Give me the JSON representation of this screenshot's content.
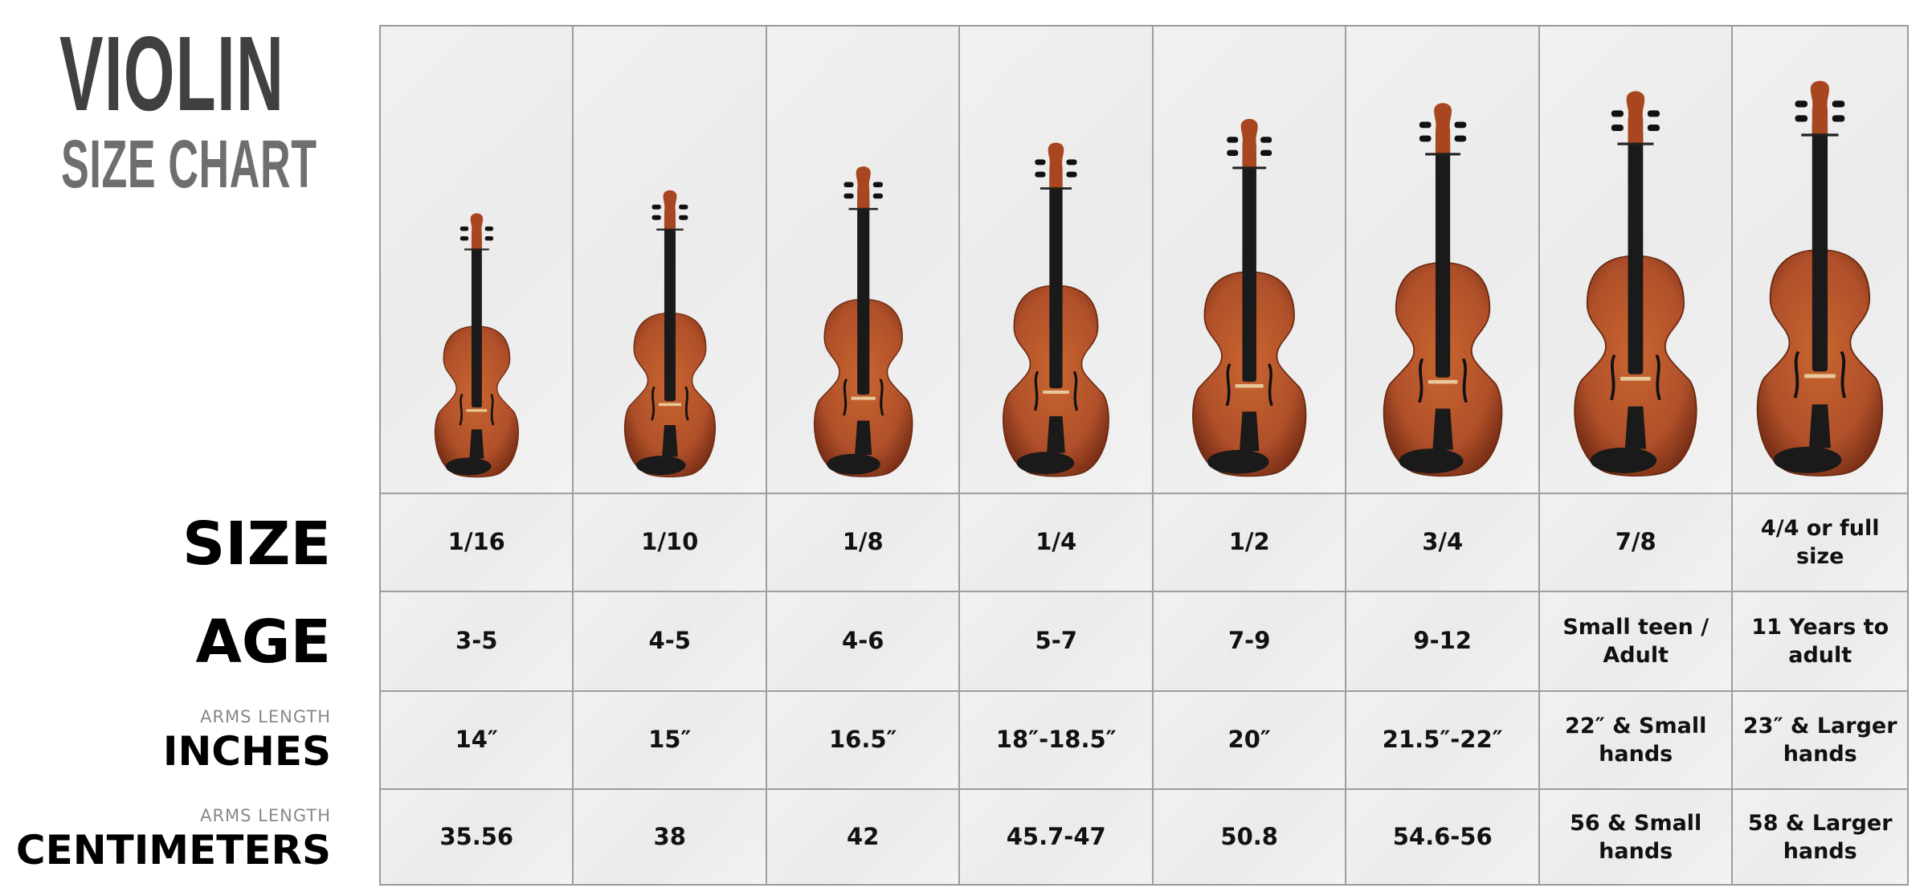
{
  "title": {
    "main": "VIOLIN",
    "sub": "SIZE CHART"
  },
  "row_labels": {
    "size": "SIZE",
    "age": "AGE",
    "inches_note": "ARMS LENGTH",
    "inches": "INCHES",
    "cm_note": "ARMS LENGTH",
    "cm": "CENTIMETERS"
  },
  "colors": {
    "violin_body": "#b5532a",
    "fingerboard": "#1a1a1a",
    "title_dark": "#404040",
    "title_light": "#6e6e6e",
    "grid": "#9e9e9e"
  },
  "columns": [
    {
      "size": "1/16",
      "age": "3-5",
      "inches": "14″",
      "cm": "35.56"
    },
    {
      "size": "1/10",
      "age": "4-5",
      "inches": "15″",
      "cm": "38"
    },
    {
      "size": "1/8",
      "age": "4-6",
      "inches": "16.5″",
      "cm": "42"
    },
    {
      "size": "1/4",
      "age": "5-7",
      "inches": "18″-18.5″",
      "cm": "45.7-47"
    },
    {
      "size": "1/2",
      "age": "7-9",
      "inches": "20″",
      "cm": "50.8"
    },
    {
      "size": "3/4",
      "age": "9-12",
      "inches": "21.5″-22″",
      "cm": "54.6-56"
    },
    {
      "size": "7/8",
      "age": "Small teen / Adult",
      "inches": "22″ & Small hands",
      "cm": "56 & Small hands"
    },
    {
      "size": "4/4 or full size",
      "age": "11 Years to adult",
      "inches": "23″ & Larger hands",
      "cm": "58 & Larger hands"
    }
  ]
}
